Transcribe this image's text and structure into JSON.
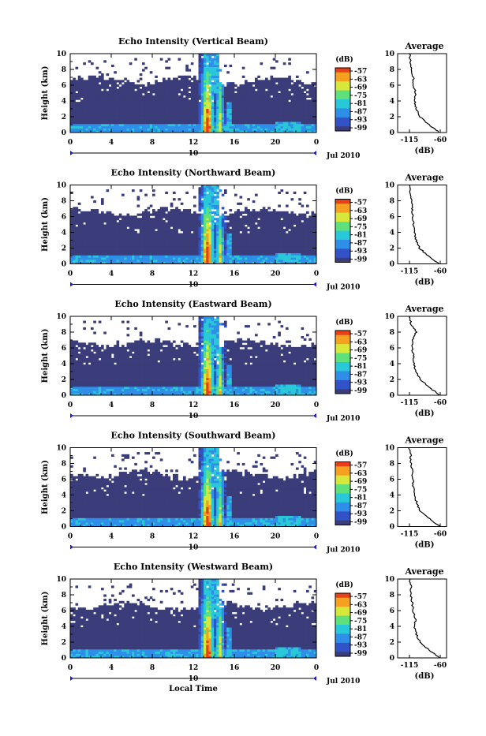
{
  "figure": {
    "x_axis_title": "Local Time",
    "date_label": "Jul 2010",
    "day_label": "10",
    "colorbar_title": "(dB)",
    "colorbar_ticks": [
      "-57",
      "-63",
      "-69",
      "-75",
      "-81",
      "-87",
      "-93",
      "-99"
    ],
    "avg_title": "Average",
    "avg_xlabel": "(dB)",
    "avg_xticks": [
      "-115",
      "-60"
    ],
    "ylabel": "Height (km)",
    "colors": {
      "background_noise": "#3a3d7a",
      "colormap": [
        "#3a3d7a",
        "#3252c8",
        "#2f8fe8",
        "#29c8d8",
        "#5ee07a",
        "#d8e83a",
        "#f5a020",
        "#e84018"
      ]
    }
  },
  "chart_data": [
    {
      "type": "heatmap",
      "title": "Echo Intensity (Vertical Beam)",
      "xlabel": "",
      "ylabel": "Height (km)",
      "xlim": [
        0,
        24
      ],
      "ylim": [
        0,
        10
      ],
      "xticks": [
        0,
        4,
        8,
        12,
        16,
        20,
        24
      ],
      "yticks": [
        0,
        2,
        4,
        6,
        8,
        10
      ],
      "colorbar_range_db": [
        -99,
        -57
      ],
      "average_profile": {
        "x_db_range": [
          -115,
          -60
        ],
        "heights_km": [
          0,
          1,
          2,
          3,
          4,
          5,
          6,
          7,
          8,
          9,
          10
        ],
        "values_db": [
          -62,
          -80,
          -96,
          -103,
          -106,
          -104,
          -108,
          -108,
          -112,
          -113,
          -115
        ]
      }
    },
    {
      "type": "heatmap",
      "title": "Echo Intensity (Northward Beam)",
      "xlabel": "",
      "ylabel": "Height (km)",
      "xlim": [
        0,
        24
      ],
      "ylim": [
        0,
        10
      ],
      "xticks": [
        0,
        4,
        8,
        12,
        16,
        20,
        24
      ],
      "yticks": [
        0,
        2,
        4,
        6,
        8,
        10
      ],
      "colorbar_range_db": [
        -99,
        -57
      ],
      "average_profile": {
        "x_db_range": [
          -115,
          -60
        ],
        "heights_km": [
          0,
          1,
          2,
          3,
          4,
          5,
          6,
          7,
          8,
          9,
          10
        ],
        "values_db": [
          -62,
          -82,
          -97,
          -103,
          -106,
          -108,
          -109,
          -110,
          -112,
          -114,
          -114
        ]
      }
    },
    {
      "type": "heatmap",
      "title": "Echo Intensity (Eastward Beam)",
      "xlabel": "",
      "ylabel": "Height (km)",
      "xlim": [
        0,
        24
      ],
      "ylim": [
        0,
        10
      ],
      "xticks": [
        0,
        4,
        8,
        12,
        16,
        20,
        24
      ],
      "yticks": [
        0,
        2,
        4,
        6,
        8,
        10
      ],
      "colorbar_range_db": [
        -99,
        -57
      ],
      "average_profile": {
        "x_db_range": [
          -115,
          -60
        ],
        "heights_km": [
          0,
          1,
          2,
          3,
          4,
          5,
          6,
          7,
          8,
          9,
          10
        ],
        "values_db": [
          -60,
          -80,
          -95,
          -104,
          -107,
          -108,
          -110,
          -109,
          -103,
          -112,
          -115
        ]
      }
    },
    {
      "type": "heatmap",
      "title": "Echo Intensity (Southward Beam)",
      "xlabel": "",
      "ylabel": "Height (km)",
      "xlim": [
        0,
        24
      ],
      "ylim": [
        0,
        10
      ],
      "xticks": [
        0,
        4,
        8,
        12,
        16,
        20,
        24
      ],
      "yticks": [
        0,
        2,
        4,
        6,
        8,
        10
      ],
      "colorbar_range_db": [
        -99,
        -57
      ],
      "average_profile": {
        "x_db_range": [
          -115,
          -60
        ],
        "heights_km": [
          0,
          1,
          2,
          3,
          4,
          5,
          6,
          7,
          8,
          9,
          10
        ],
        "values_db": [
          -61,
          -80,
          -96,
          -102,
          -106,
          -108,
          -109,
          -110,
          -112,
          -113,
          -115
        ]
      }
    },
    {
      "type": "heatmap",
      "title": "Echo Intensity (Westward Beam)",
      "xlabel": "Local Time",
      "ylabel": "Height (km)",
      "xlim": [
        0,
        24
      ],
      "ylim": [
        0,
        10
      ],
      "xticks": [
        0,
        4,
        8,
        12,
        16,
        20,
        24
      ],
      "yticks": [
        0,
        2,
        4,
        6,
        8,
        10
      ],
      "colorbar_range_db": [
        -99,
        -57
      ],
      "average_profile": {
        "x_db_range": [
          -115,
          -60
        ],
        "heights_km": [
          0,
          1,
          2,
          3,
          4,
          5,
          6,
          7,
          8,
          9,
          10
        ],
        "values_db": [
          -62,
          -80,
          -96,
          -103,
          -106,
          -104,
          -109,
          -110,
          -113,
          -112,
          -115
        ]
      }
    }
  ]
}
